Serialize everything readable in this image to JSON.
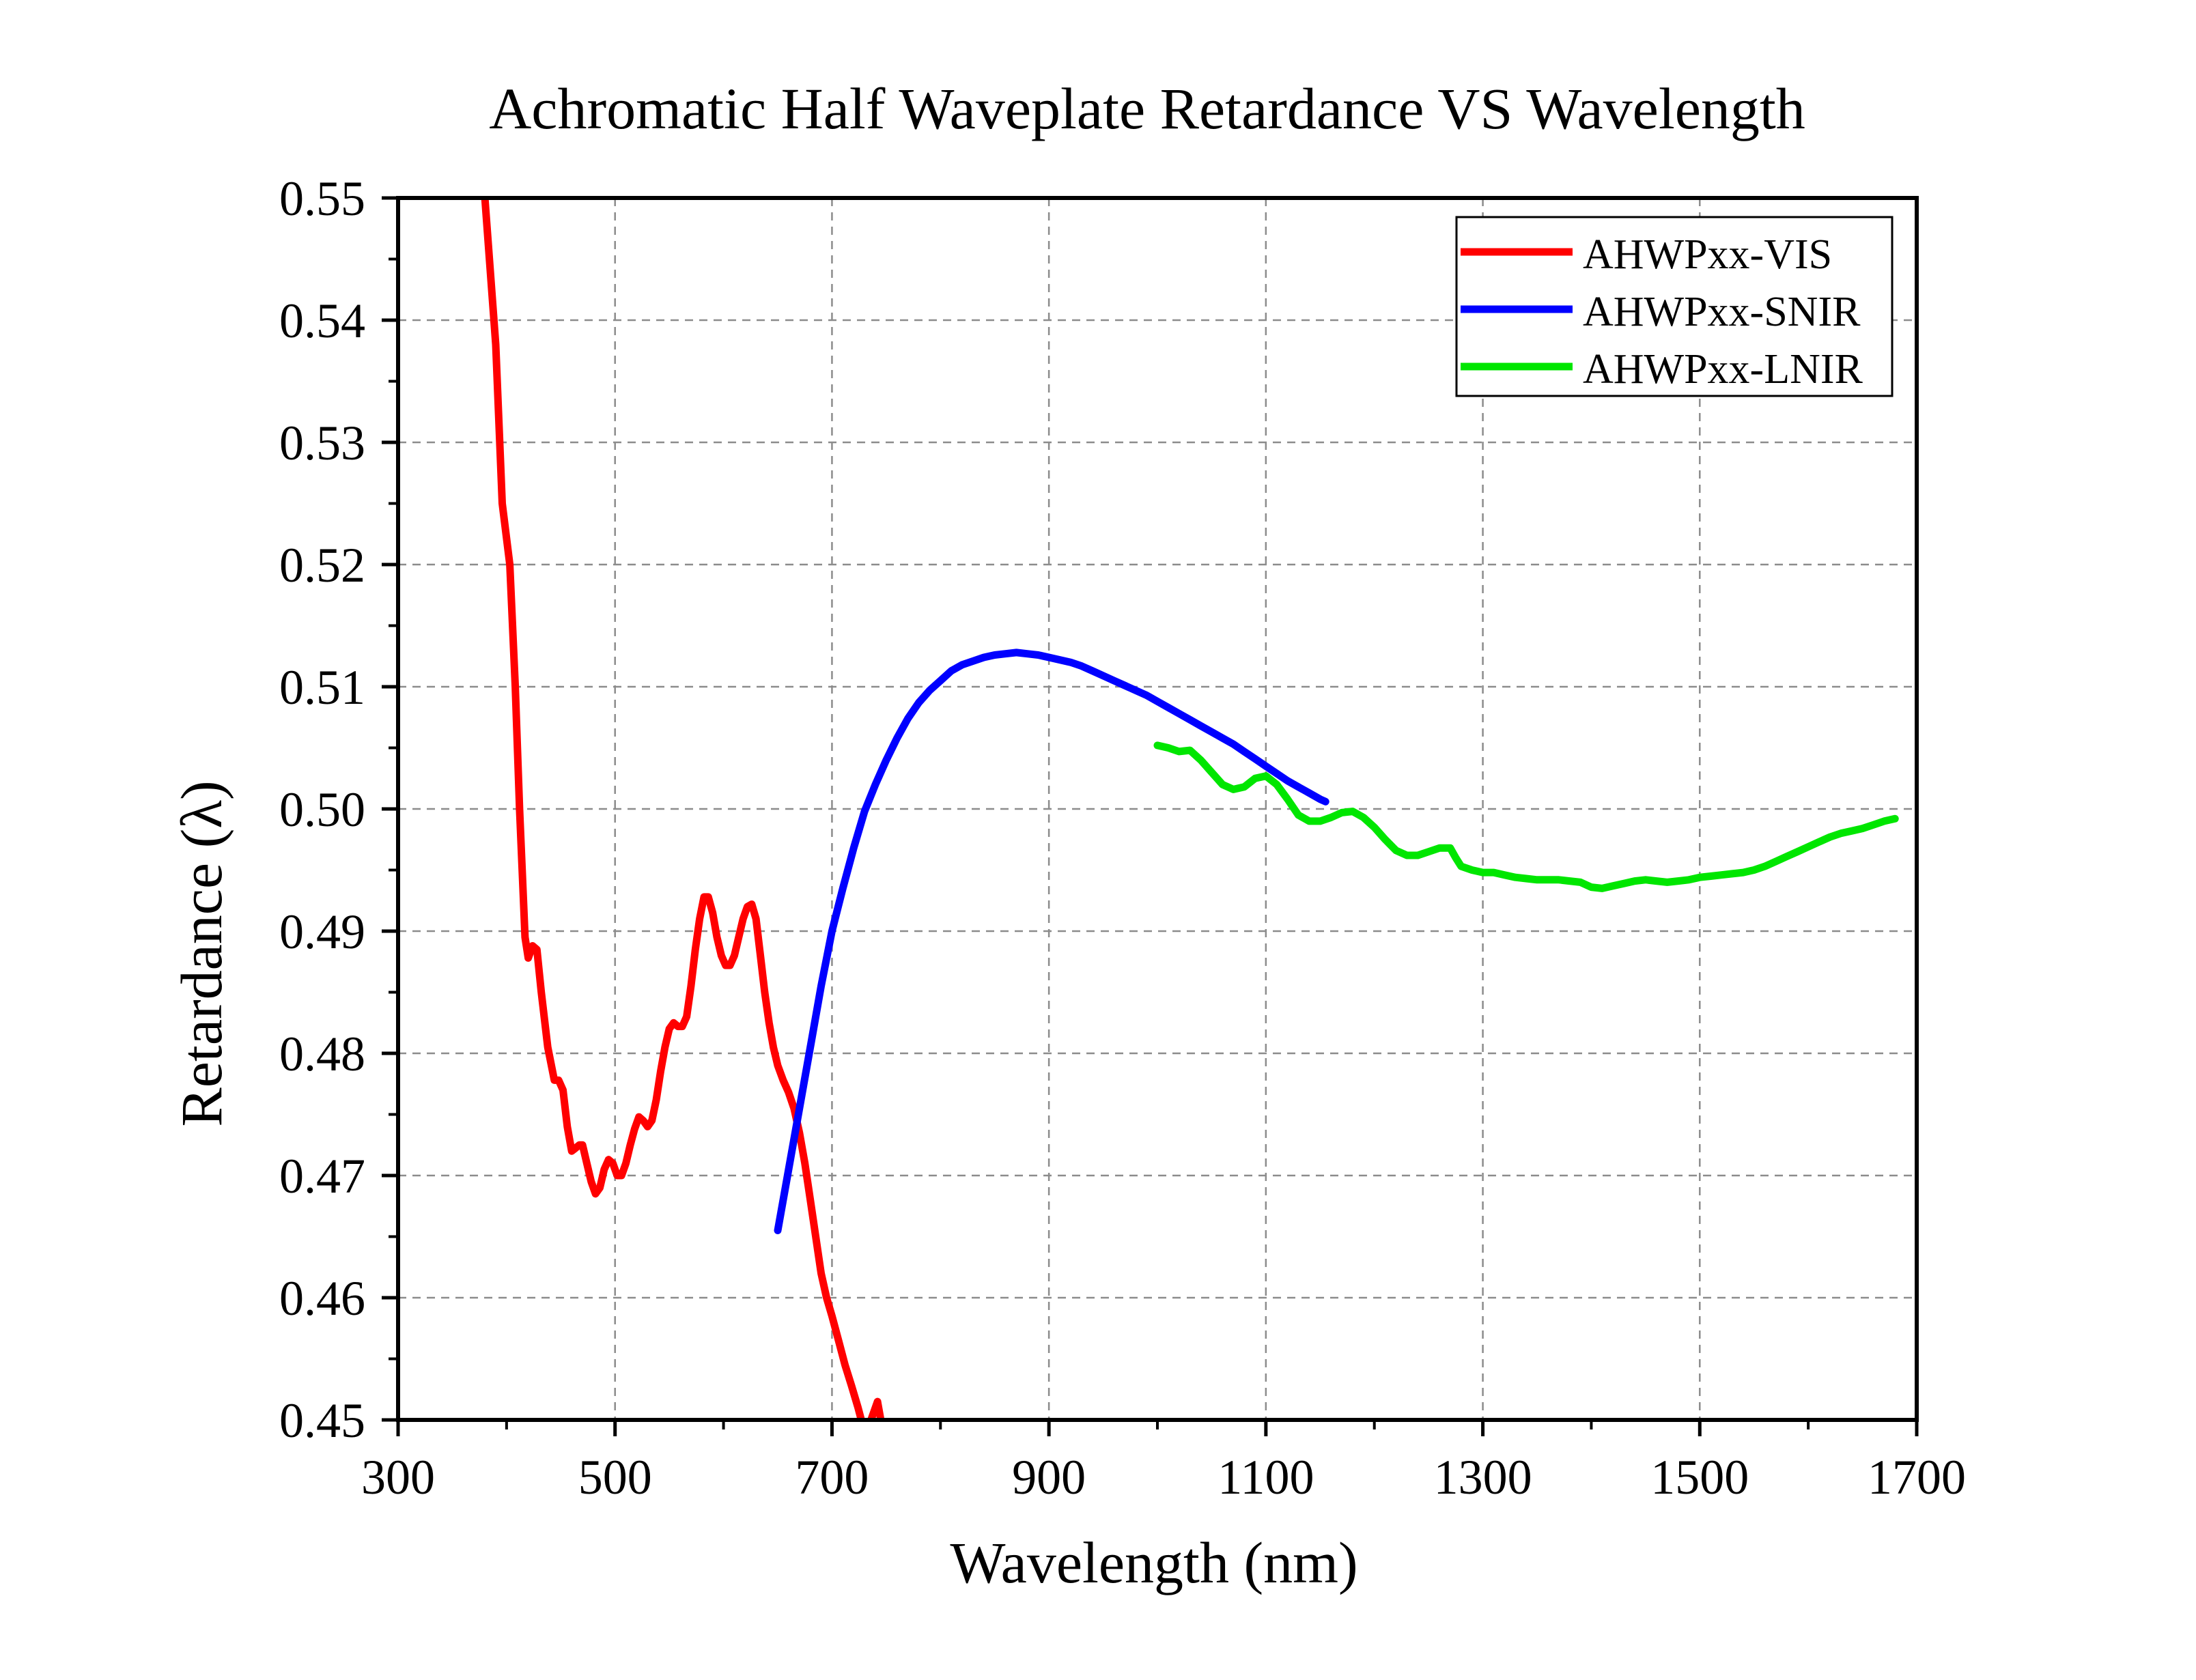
{
  "chart_data": {
    "type": "line",
    "title": "Achromatic Half Waveplate Retardance VS Wavelength",
    "xlabel": "Wavelength (nm)",
    "ylabel": "Retardance (λ)",
    "xlim": [
      300,
      1700
    ],
    "ylim": [
      0.45,
      0.55
    ],
    "x_ticks": [
      300,
      500,
      700,
      900,
      1100,
      1300,
      1500,
      1700
    ],
    "x_tick_labels": [
      "300",
      "500",
      "700",
      "900",
      "1100",
      "1300",
      "1500",
      "1700"
    ],
    "y_ticks": [
      0.45,
      0.46,
      0.47,
      0.48,
      0.49,
      0.5,
      0.51,
      0.52,
      0.53,
      0.54,
      0.55
    ],
    "y_tick_labels": [
      "0.45",
      "0.46",
      "0.47",
      "0.48",
      "0.49",
      "0.50",
      "0.51",
      "0.52",
      "0.53",
      "0.54",
      "0.55"
    ],
    "grid": true,
    "legend_position": "top-right",
    "series": [
      {
        "name": "AHWPxx-VIS",
        "color": "#ff0000",
        "x": [
          380,
          390,
          396,
          403,
          408,
          412,
          417,
          420,
          424,
          428,
          432,
          438,
          444,
          448,
          452,
          456,
          460,
          463,
          467,
          470,
          474,
          478,
          482,
          486,
          490,
          494,
          498,
          502,
          506,
          510,
          514,
          518,
          522,
          526,
          530,
          534,
          538,
          542,
          546,
          550,
          554,
          558,
          562,
          566,
          570,
          574,
          578,
          582,
          586,
          590,
          594,
          598,
          602,
          606,
          610,
          614,
          618,
          622,
          626,
          630,
          634,
          638,
          642,
          646,
          650,
          655,
          660,
          665,
          670,
          675,
          680,
          685,
          690,
          695,
          700,
          706,
          712,
          718,
          724,
          730,
          736,
          742,
          745
        ],
        "y": [
          0.55,
          0.538,
          0.525,
          0.52,
          0.51,
          0.5,
          0.4895,
          0.4878,
          0.4888,
          0.4885,
          0.485,
          0.4805,
          0.4778,
          0.4778,
          0.477,
          0.474,
          0.472,
          0.4722,
          0.4725,
          0.4725,
          0.471,
          0.4695,
          0.4685,
          0.469,
          0.4705,
          0.4713,
          0.471,
          0.47,
          0.47,
          0.471,
          0.4725,
          0.4738,
          0.4748,
          0.4745,
          0.474,
          0.4745,
          0.4762,
          0.4785,
          0.4805,
          0.482,
          0.4825,
          0.4822,
          0.4822,
          0.483,
          0.4855,
          0.4885,
          0.491,
          0.4928,
          0.4928,
          0.4915,
          0.4895,
          0.488,
          0.4872,
          0.4872,
          0.488,
          0.4895,
          0.491,
          0.492,
          0.4922,
          0.491,
          0.488,
          0.485,
          0.4825,
          0.4805,
          0.479,
          0.4778,
          0.4768,
          0.4755,
          0.4735,
          0.471,
          0.468,
          0.465,
          0.462,
          0.46,
          0.4585,
          0.4565,
          0.4545,
          0.4528,
          0.451,
          0.449,
          0.45,
          0.4515,
          0.45
        ]
      },
      {
        "name": "AHWPxx-SNIR",
        "color": "#0000ff",
        "x": [
          650,
          660,
          670,
          680,
          690,
          700,
          710,
          720,
          730,
          740,
          750,
          760,
          770,
          780,
          790,
          800,
          810,
          820,
          830,
          840,
          850,
          860,
          870,
          880,
          890,
          900,
          910,
          920,
          930,
          940,
          950,
          960,
          970,
          980,
          990,
          1000,
          1010,
          1020,
          1030,
          1040,
          1050,
          1060,
          1070,
          1080,
          1090,
          1100,
          1110,
          1120,
          1130,
          1140,
          1150,
          1155
        ],
        "y": [
          0.4655,
          0.4705,
          0.4755,
          0.4805,
          0.4855,
          0.49,
          0.4935,
          0.4968,
          0.4998,
          0.502,
          0.504,
          0.5058,
          0.5074,
          0.5087,
          0.5097,
          0.5105,
          0.5113,
          0.5118,
          0.5121,
          0.5124,
          0.5126,
          0.5127,
          0.5128,
          0.5127,
          0.5126,
          0.5124,
          0.5122,
          0.512,
          0.5117,
          0.5113,
          0.5109,
          0.5105,
          0.5101,
          0.5097,
          0.5093,
          0.5088,
          0.5083,
          0.5078,
          0.5073,
          0.5068,
          0.5063,
          0.5058,
          0.5053,
          0.5047,
          0.5041,
          0.5035,
          0.5029,
          0.5023,
          0.5018,
          0.5013,
          0.5008,
          0.5006
        ]
      },
      {
        "name": "AHWPxx-LNIR",
        "color": "#00e600",
        "x": [
          1000,
          1010,
          1020,
          1030,
          1040,
          1050,
          1060,
          1070,
          1080,
          1090,
          1100,
          1110,
          1120,
          1130,
          1140,
          1150,
          1160,
          1170,
          1180,
          1190,
          1200,
          1210,
          1220,
          1230,
          1240,
          1250,
          1260,
          1270,
          1275,
          1280,
          1290,
          1300,
          1310,
          1320,
          1330,
          1340,
          1350,
          1360,
          1370,
          1380,
          1390,
          1400,
          1410,
          1420,
          1430,
          1440,
          1450,
          1460,
          1470,
          1480,
          1490,
          1500,
          1510,
          1520,
          1530,
          1540,
          1550,
          1560,
          1570,
          1580,
          1590,
          1600,
          1610,
          1620,
          1630,
          1640,
          1650,
          1660,
          1670,
          1680
        ],
        "y": [
          0.5052,
          0.505,
          0.5047,
          0.5048,
          0.504,
          0.503,
          0.502,
          0.5016,
          0.5018,
          0.5025,
          0.5027,
          0.502,
          0.5008,
          0.4995,
          0.499,
          0.499,
          0.4993,
          0.4997,
          0.4998,
          0.4993,
          0.4985,
          0.4975,
          0.4966,
          0.4962,
          0.4962,
          0.4965,
          0.4968,
          0.4968,
          0.496,
          0.4953,
          0.495,
          0.4948,
          0.4948,
          0.4946,
          0.4944,
          0.4943,
          0.4942,
          0.4942,
          0.4942,
          0.4941,
          0.494,
          0.4936,
          0.4935,
          0.4937,
          0.4939,
          0.4941,
          0.4942,
          0.4941,
          0.494,
          0.4941,
          0.4942,
          0.4944,
          0.4945,
          0.4946,
          0.4947,
          0.4948,
          0.495,
          0.4953,
          0.4957,
          0.4961,
          0.4965,
          0.4969,
          0.4973,
          0.4977,
          0.498,
          0.4982,
          0.4984,
          0.4987,
          0.499,
          0.4992
        ]
      }
    ]
  }
}
